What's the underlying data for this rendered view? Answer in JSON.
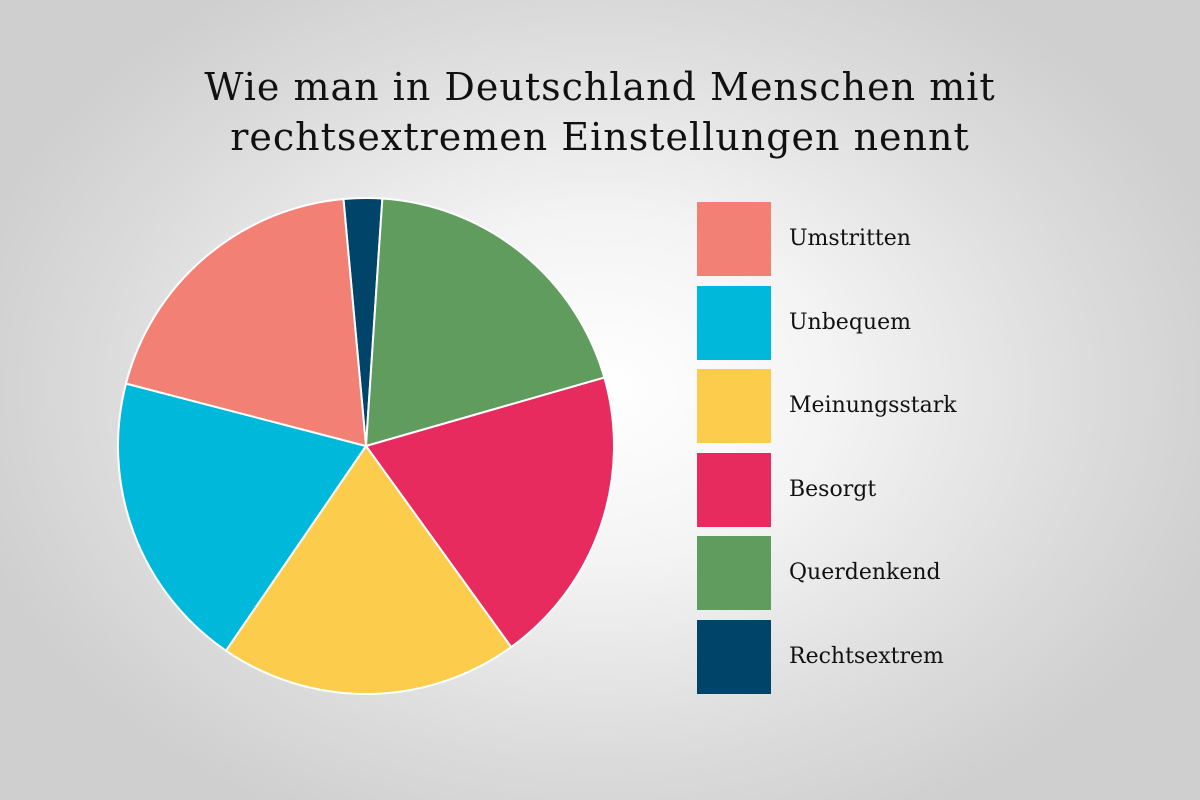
{
  "chart_data": {
    "type": "pie",
    "title_lines": [
      "Wie man in Deutschland Menschen mit",
      "rechtsextremen Einstellungen nennt"
    ],
    "legend_position": "right",
    "slices": [
      {
        "label": "Umstritten",
        "value": 19.5,
        "color": "#f28074"
      },
      {
        "label": "Unbequem",
        "value": 19.5,
        "color": "#00b8da"
      },
      {
        "label": "Meinungsstark",
        "value": 19.5,
        "color": "#fccd4d"
      },
      {
        "label": "Besorgt",
        "value": 19.5,
        "color": "#e82b5e"
      },
      {
        "label": "Querdenkend",
        "value": 19.5,
        "color": "#5f9c5d"
      },
      {
        "label": "Rechtsextrem",
        "value": 2.5,
        "color": "#004469"
      }
    ]
  }
}
